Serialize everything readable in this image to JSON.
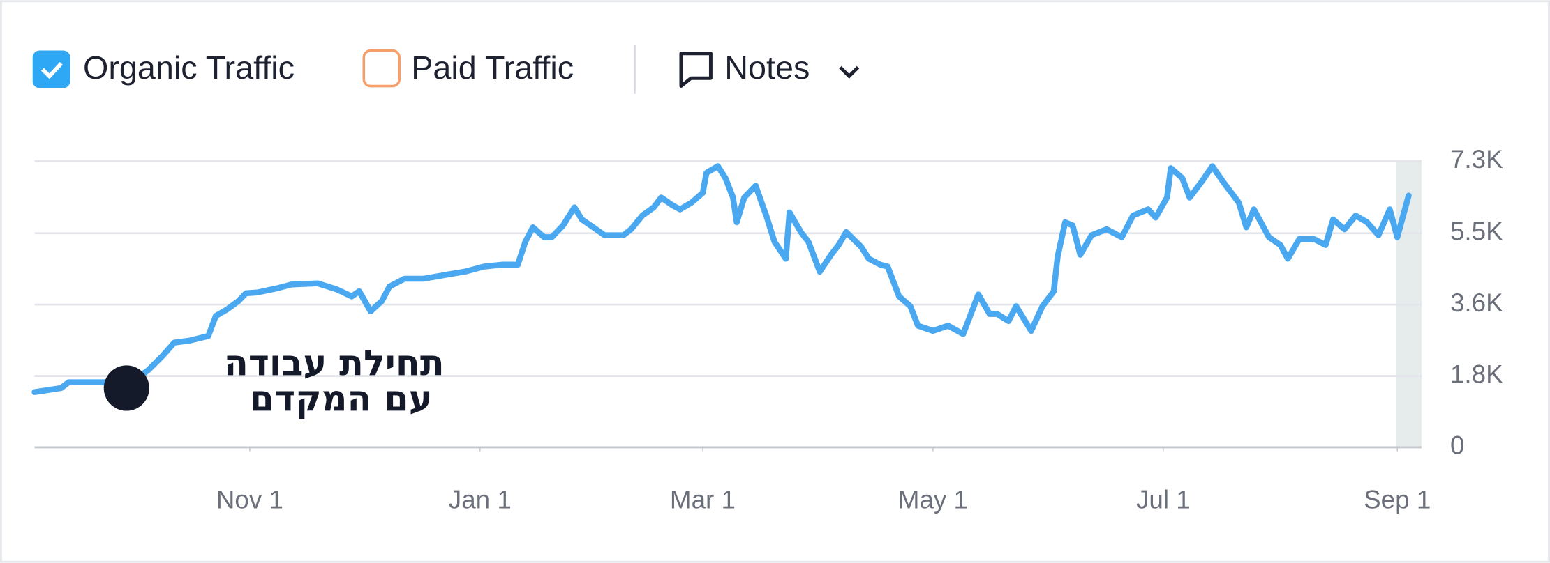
{
  "chart_data": {
    "type": "line",
    "x": [
      0,
      7,
      9,
      20,
      27,
      30,
      34,
      37,
      41,
      46,
      48,
      51,
      54,
      56,
      59,
      64,
      68,
      75,
      80,
      84,
      86,
      89,
      92,
      94,
      98,
      103,
      109,
      114,
      119,
      124,
      128,
      130,
      132,
      135,
      137,
      140,
      143,
      145,
      148,
      151,
      156,
      158,
      161,
      164,
      166,
      169,
      171,
      174,
      177,
      178,
      181,
      183,
      185,
      186,
      188,
      191,
      194,
      196,
      199,
      200,
      203,
      205,
      208,
      211,
      213,
      215,
      219,
      221,
      224,
      226,
      229,
      232,
      234,
      238,
      242,
      246,
      250,
      253,
      255,
      258,
      260,
      264,
      267,
      270,
      271,
      273,
      275,
      277,
      280,
      284,
      288,
      291,
      295,
      297,
      300,
      301,
      304,
      306,
      309,
      312,
      315,
      319,
      321,
      323,
      327,
      330,
      332,
      335,
      339,
      342,
      344,
      347,
      350,
      353,
      356,
      359,
      361,
      364
    ],
    "series": [
      {
        "name": "Organic Traffic",
        "color": "#4aa8f0",
        "values": [
          1410,
          1510,
          1660,
          1660,
          1760,
          1960,
          2340,
          2670,
          2720,
          2840,
          3350,
          3520,
          3730,
          3930,
          3950,
          4050,
          4150,
          4180,
          4030,
          3850,
          3980,
          3470,
          3730,
          4100,
          4300,
          4300,
          4400,
          4480,
          4610,
          4660,
          4660,
          5240,
          5610,
          5360,
          5360,
          5660,
          6120,
          5810,
          5610,
          5410,
          5410,
          5560,
          5910,
          6120,
          6370,
          6170,
          6070,
          6240,
          6490,
          7000,
          7170,
          6870,
          6370,
          5740,
          6370,
          6670,
          5860,
          5240,
          4810,
          5990,
          5490,
          5240,
          4480,
          4910,
          5160,
          5490,
          5110,
          4810,
          4660,
          4610,
          3850,
          3600,
          3100,
          2970,
          3100,
          2890,
          3900,
          3400,
          3400,
          3220,
          3600,
          2970,
          3600,
          3980,
          4860,
          5740,
          5660,
          4910,
          5410,
          5560,
          5360,
          5910,
          6070,
          5860,
          6370,
          7120,
          6870,
          6370,
          6750,
          7170,
          6750,
          6240,
          5610,
          6070,
          5360,
          5160,
          4810,
          5310,
          5310,
          5160,
          5810,
          5560,
          5910,
          5740,
          5410,
          6070,
          5360,
          6420
        ]
      }
    ],
    "xlim": [
      0,
      364
    ],
    "xticks": [
      {
        "value": 57,
        "label": "Nov 1"
      },
      {
        "value": 118,
        "label": "Jan 1"
      },
      {
        "value": 177,
        "label": "Mar 1"
      },
      {
        "value": 238,
        "label": "May 1"
      },
      {
        "value": 299,
        "label": "Jul 1"
      },
      {
        "value": 361,
        "label": "Sep 1"
      }
    ],
    "ylim": [
      0,
      7300
    ],
    "yticks": [
      0,
      {
        "value": 1820,
        "label": "1.8K"
      },
      {
        "value": 3640,
        "label": "3.6K"
      },
      {
        "value": 5460,
        "label": "5.5K"
      },
      {
        "value": 7300,
        "label": "7.3K"
      }
    ],
    "grid": true,
    "toggles": [
      {
        "label": "Paid Traffic",
        "checked": false,
        "color": "#f5a06a"
      }
    ],
    "notes_button": "Notes",
    "annotations": [
      "תחילת עבודה",
      "עם המקדם"
    ]
  }
}
